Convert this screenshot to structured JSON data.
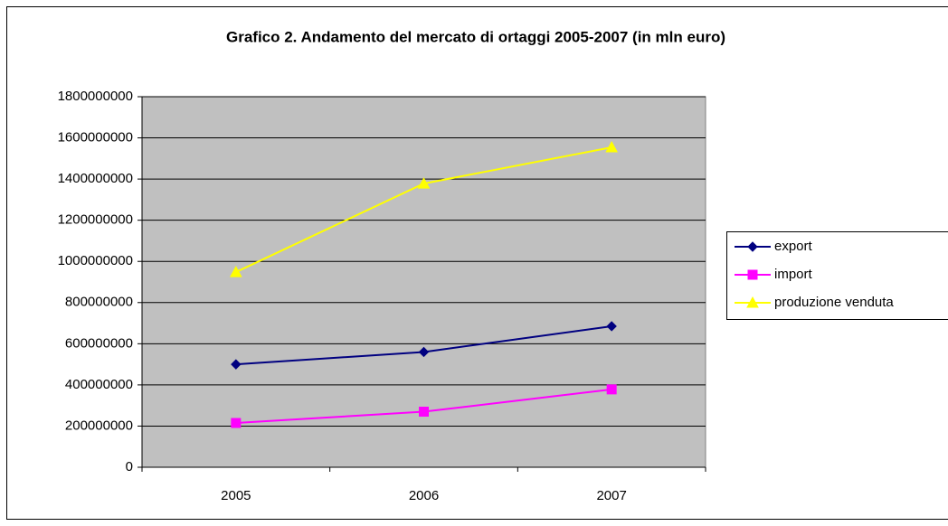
{
  "chart_data": {
    "type": "line",
    "title": "Grafico 2. Andamento del mercato di ortaggi 2005-2007 (in mln euro)",
    "categories": [
      "2005",
      "2006",
      "2007"
    ],
    "series": [
      {
        "name": "export",
        "color": "#000080",
        "marker": "diamond",
        "values": [
          500000000,
          560000000,
          685000000
        ]
      },
      {
        "name": "import",
        "color": "#ff00ff",
        "marker": "square",
        "values": [
          215000000,
          270000000,
          378000000
        ]
      },
      {
        "name": "produzione venduta",
        "color": "#ffff00",
        "marker": "triangle",
        "values": [
          948000000,
          1378000000,
          1554000000
        ]
      }
    ],
    "ylim": [
      0,
      1800000000
    ],
    "yticks": [
      0,
      200000000,
      400000000,
      600000000,
      800000000,
      1000000000,
      1200000000,
      1400000000,
      1600000000,
      1800000000
    ],
    "grid": true,
    "legend": "right",
    "plot_background": "#c0c0c0"
  }
}
